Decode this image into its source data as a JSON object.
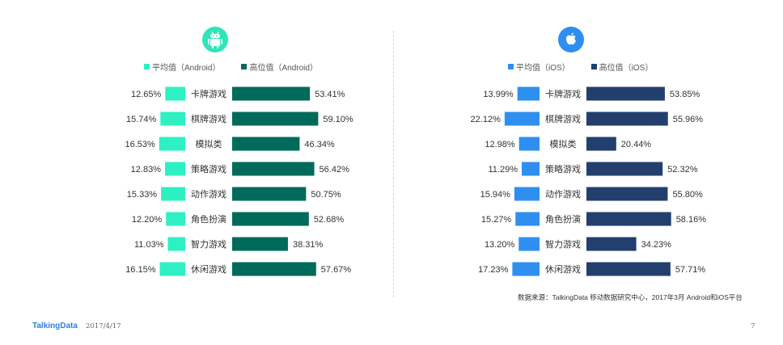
{
  "chart_data": [
    {
      "type": "bar",
      "platform_icon": "android-icon",
      "categories": [
        "卡牌游戏",
        "棋牌游戏",
        "模拟类",
        "策略游戏",
        "动作游戏",
        "角色扮演",
        "智力游戏",
        "休闲游戏"
      ],
      "series": [
        {
          "name": "平均值（Android）",
          "color": "#2ef0c2",
          "values": [
            12.65,
            15.74,
            16.53,
            12.83,
            15.33,
            12.2,
            11.03,
            16.15
          ]
        },
        {
          "name": "高位值（Android）",
          "color": "#006b5a",
          "values": [
            53.41,
            59.1,
            46.34,
            56.42,
            50.75,
            52.68,
            38.31,
            57.67
          ]
        }
      ],
      "value_suffix": "%",
      "icon_color": "#2ee6b8"
    },
    {
      "type": "bar",
      "platform_icon": "apple-icon",
      "categories": [
        "卡牌游戏",
        "棋牌游戏",
        "模拟类",
        "策略游戏",
        "动作游戏",
        "角色扮演",
        "智力游戏",
        "休闲游戏"
      ],
      "series": [
        {
          "name": "平均值（iOS）",
          "color": "#2f8ff0",
          "values": [
            13.99,
            22.12,
            12.98,
            11.29,
            15.94,
            15.27,
            13.2,
            17.23
          ]
        },
        {
          "name": "高位值（iOS）",
          "color": "#233f6e",
          "values": [
            53.85,
            55.96,
            20.44,
            52.32,
            55.8,
            58.16,
            34.23,
            57.71
          ]
        }
      ],
      "value_suffix": "%",
      "icon_color": "#2f8ff0"
    }
  ],
  "source": "数据来源：TalkingData 移动数据研究中心，2017年3月 Android和iOS平台",
  "footer": {
    "brand": "TalkingData",
    "date": "2017/4/17",
    "page": "7"
  }
}
